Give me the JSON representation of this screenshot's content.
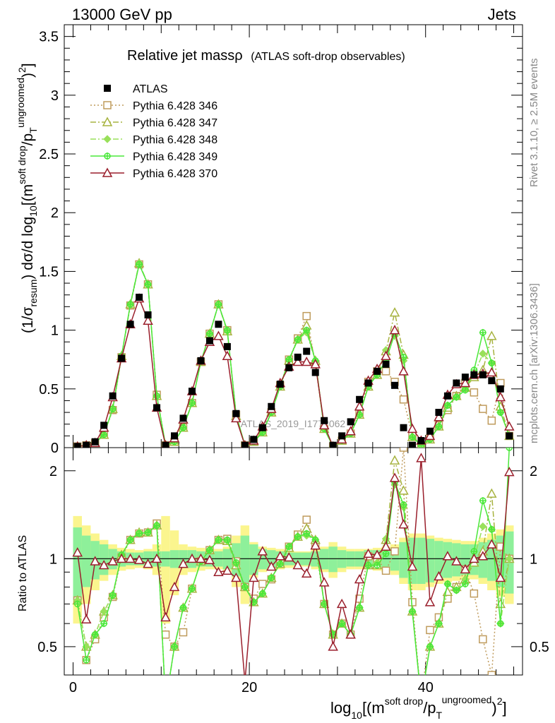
{
  "header": {
    "energy_label": "13000 GeV pp",
    "category_label": "Jets"
  },
  "side_text": {
    "rivet": "Rivet 3.1.10, ≥ 2.5M events",
    "site": "mcplots.cern.ch [arXiv:1306.3436]"
  },
  "chart_data": [
    {
      "type": "line",
      "panel": "main",
      "title": "Relative jet massρ",
      "subtitle": "(ATLAS soft-drop observables)",
      "ylabel": "(1/σresum) dσ/d log10[(m^soft drop/pT^ungroomed)^2]",
      "watermark": "ATLAS_2019_I1772062",
      "xlim": [
        -1,
        51
      ],
      "ylim": [
        0,
        3.6
      ],
      "y_ticks": [
        "0",
        "0.5",
        "1",
        "1.5",
        "2",
        "2.5",
        "3",
        "3.5"
      ],
      "grid": false,
      "legend_position": "top-left",
      "data": {
        "name": "ATLAS",
        "color": "#000000",
        "x": [
          0.5,
          1.5,
          2.5,
          3.5,
          4.5,
          5.5,
          6.5,
          7.5,
          8.5,
          9.5,
          10.5,
          11.5,
          12.5,
          13.5,
          14.5,
          15.5,
          16.5,
          17.5,
          18.5,
          19.5,
          20.5,
          21.5,
          22.5,
          23.5,
          24.5,
          25.5,
          26.5,
          27.5,
          28.5,
          29.5,
          30.5,
          31.5,
          32.5,
          33.5,
          34.5,
          35.5,
          36.5,
          37.5,
          38.5,
          39.5,
          40.5,
          41.5,
          42.5,
          43.5,
          44.5,
          45.5,
          46.5,
          47.5,
          48.5,
          49.5
        ],
        "y": [
          0.01,
          0.02,
          0.05,
          0.19,
          0.44,
          0.76,
          1.05,
          1.28,
          1.13,
          0.34,
          0.02,
          0.1,
          0.25,
          0.48,
          0.74,
          0.91,
          1.05,
          0.86,
          0.29,
          0.02,
          0.07,
          0.17,
          0.35,
          0.54,
          0.68,
          0.77,
          0.82,
          0.64,
          0.23,
          0.02,
          0.1,
          0.22,
          0.41,
          0.55,
          0.65,
          0.71,
          0.53,
          0.17,
          0.02,
          0.06,
          0.14,
          0.3,
          0.44,
          0.55,
          0.6,
          0.62,
          0.62,
          0.57,
          0.5,
          0.1
        ]
      },
      "series": [
        {
          "name": "Pythia 6.428 346",
          "color": "#bf9b5c",
          "marker": "square-open",
          "dash": "dotted",
          "y": [
            0.01,
            0.02,
            0.04,
            0.11,
            0.32,
            0.77,
            1.21,
            1.56,
            1.39,
            0.45,
            0.02,
            0.05,
            0.17,
            0.38,
            0.73,
            0.97,
            1.22,
            1.0,
            0.28,
            0.02,
            0.05,
            0.14,
            0.3,
            0.53,
            0.75,
            0.93,
            1.12,
            0.71,
            0.16,
            0.01,
            0.06,
            0.12,
            0.3,
            0.56,
            0.65,
            0.65,
            0.56,
            0.41,
            0.1,
            0.02,
            0.08,
            0.19,
            0.32,
            0.44,
            0.55,
            0.47,
            0.33,
            0.23,
            0.55,
            0.1
          ]
        },
        {
          "name": "Pythia 6.428 347",
          "color": "#a7b340",
          "marker": "triangle-open",
          "dash": "dashdot",
          "y": [
            0.01,
            0.02,
            0.04,
            0.11,
            0.33,
            0.78,
            1.22,
            1.57,
            1.39,
            0.44,
            0.02,
            0.05,
            0.17,
            0.38,
            0.73,
            0.97,
            1.22,
            0.99,
            0.27,
            0.02,
            0.05,
            0.13,
            0.3,
            0.52,
            0.74,
            0.92,
            1.04,
            0.74,
            0.16,
            0.01,
            0.06,
            0.12,
            0.28,
            0.52,
            0.62,
            0.82,
            1.15,
            0.79,
            0.09,
            0.02,
            0.07,
            0.18,
            0.34,
            0.44,
            0.51,
            0.6,
            0.66,
            0.95,
            0.35,
            0.1
          ]
        },
        {
          "name": "Pythia 6.428 348",
          "color": "#99e05a",
          "marker": "diamond",
          "dash": "dashdot",
          "y": [
            0.01,
            0.02,
            0.04,
            0.11,
            0.33,
            0.78,
            1.22,
            1.57,
            1.39,
            0.44,
            0.02,
            0.05,
            0.17,
            0.38,
            0.73,
            0.97,
            1.22,
            0.99,
            0.28,
            0.02,
            0.05,
            0.13,
            0.3,
            0.52,
            0.75,
            0.92,
            0.98,
            0.74,
            0.16,
            0.01,
            0.06,
            0.12,
            0.28,
            0.52,
            0.63,
            0.83,
            0.95,
            0.74,
            0.09,
            0.02,
            0.07,
            0.18,
            0.36,
            0.43,
            0.51,
            0.62,
            0.8,
            0.72,
            0.3,
            0.1
          ]
        },
        {
          "name": "Pythia 6.428 349",
          "color": "#4ae83a",
          "marker": "cross-circle",
          "dash": "solid",
          "y": [
            0.01,
            0.02,
            0.04,
            0.11,
            0.33,
            0.78,
            1.22,
            1.56,
            1.39,
            0.44,
            0.02,
            0.05,
            0.17,
            0.38,
            0.73,
            0.97,
            1.22,
            1.0,
            0.28,
            0.02,
            0.05,
            0.13,
            0.3,
            0.52,
            0.75,
            0.92,
            1.0,
            0.74,
            0.16,
            0.01,
            0.06,
            0.12,
            0.28,
            0.52,
            0.62,
            0.74,
            0.97,
            0.77,
            0.09,
            0.02,
            0.07,
            0.18,
            0.36,
            0.43,
            0.49,
            0.66,
            0.98,
            0.72,
            0.3,
            0.1
          ]
        },
        {
          "name": "Pythia 6.428 370",
          "color": "#9a1f2c",
          "marker": "triangle-open",
          "dash": "solid",
          "y": [
            0.01,
            0.02,
            0.04,
            0.17,
            0.43,
            0.76,
            1.05,
            1.27,
            1.08,
            0.34,
            0.02,
            0.08,
            0.24,
            0.48,
            0.74,
            0.9,
            0.95,
            0.78,
            0.25,
            0.02,
            0.06,
            0.18,
            0.33,
            0.55,
            0.69,
            0.73,
            0.73,
            0.71,
            0.19,
            0.01,
            0.07,
            0.14,
            0.35,
            0.57,
            0.67,
            0.78,
            1.0,
            0.65,
            0.16,
            0.06,
            0.1,
            0.26,
            0.45,
            0.54,
            0.55,
            0.62,
            0.63,
            0.64,
            0.43,
            0.18
          ]
        }
      ]
    },
    {
      "type": "line",
      "panel": "ratio",
      "ylabel": "Ratio to ATLAS",
      "xlabel": "log10[(m^soft drop/pT^ungroomed)^2]",
      "xlim": [
        -1,
        51
      ],
      "ylim": [
        0.4,
        2.4
      ],
      "y_scale": "log",
      "x_ticks": [
        "0",
        "20",
        "40"
      ],
      "y_ticks": [
        "0.5",
        "1",
        "2"
      ],
      "band_colors": {
        "inner": "#8ef09a",
        "outer": "#fbf58e"
      },
      "band_inner_half_width": [
        0.28,
        0.2,
        0.15,
        0.12,
        0.08,
        0.06,
        0.05,
        0.05,
        0.06,
        0.06,
        0.06,
        0.07,
        0.07,
        0.07,
        0.06,
        0.06,
        0.06,
        0.08,
        0.13,
        0.2,
        0.12,
        0.08,
        0.07,
        0.06,
        0.05,
        0.05,
        0.05,
        0.06,
        0.08,
        0.1,
        0.07,
        0.06,
        0.06,
        0.07,
        0.07,
        0.07,
        0.09,
        0.14,
        0.18,
        0.18,
        0.17,
        0.15,
        0.14,
        0.13,
        0.12,
        0.12,
        0.14,
        0.16,
        0.2,
        0.24
      ],
      "band_outer_half_width": [
        0.4,
        0.3,
        0.22,
        0.16,
        0.12,
        0.09,
        0.08,
        0.07,
        0.08,
        0.12,
        0.4,
        0.25,
        0.12,
        0.1,
        0.09,
        0.08,
        0.08,
        0.1,
        0.2,
        0.3,
        0.14,
        0.1,
        0.09,
        0.08,
        0.07,
        0.06,
        0.06,
        0.08,
        0.1,
        0.14,
        0.1,
        0.08,
        0.08,
        0.08,
        0.09,
        0.1,
        0.12,
        0.18,
        0.22,
        0.22,
        0.2,
        0.18,
        0.17,
        0.16,
        0.15,
        0.15,
        0.18,
        0.22,
        0.26,
        0.3
      ],
      "series": [
        {
          "name": "Pythia 6.428 346",
          "y": [
            0.72,
            0.45,
            0.53,
            0.63,
            0.74,
            1.01,
            1.16,
            1.22,
            1.23,
            1.32,
            0.55,
            0.5,
            0.56,
            0.79,
            0.98,
            1.07,
            1.16,
            1.17,
            0.98,
            0.8,
            0.73,
            0.82,
            0.85,
            0.98,
            1.1,
            1.21,
            1.36,
            1.11,
            0.7,
            0.55,
            0.6,
            0.55,
            0.73,
            1.02,
            1.0,
            0.91,
            1.06,
            2.4,
            0.71,
            0.33,
            0.57,
            0.63,
            0.73,
            0.8,
            0.92,
            0.76,
            0.53,
            0.4,
            1.1,
            1.0
          ]
        },
        {
          "name": "Pythia 6.428 347",
          "y": [
            0.72,
            0.5,
            0.55,
            0.66,
            0.75,
            1.03,
            1.16,
            1.23,
            1.23,
            1.3,
            0.3,
            0.5,
            0.68,
            0.79,
            0.98,
            1.07,
            1.16,
            1.15,
            0.95,
            0.8,
            0.71,
            0.76,
            0.86,
            0.96,
            1.09,
            1.19,
            1.27,
            1.16,
            0.7,
            0.55,
            0.6,
            0.55,
            0.68,
            0.95,
            0.95,
            1.16,
            2.17,
            1.71,
            0.66,
            0.33,
            0.5,
            0.6,
            0.77,
            0.8,
            0.85,
            0.97,
            1.06,
            1.67,
            0.7,
            1.0
          ]
        },
        {
          "name": "Pythia 6.428 348",
          "y": [
            0.72,
            0.5,
            0.55,
            0.66,
            0.75,
            1.03,
            1.16,
            1.23,
            1.23,
            1.3,
            0.3,
            0.5,
            0.68,
            0.79,
            0.98,
            1.07,
            1.16,
            1.15,
            0.96,
            0.8,
            0.71,
            0.76,
            0.86,
            0.96,
            1.1,
            1.19,
            1.2,
            1.16,
            0.7,
            0.55,
            0.6,
            0.55,
            0.68,
            0.95,
            0.97,
            1.17,
            1.79,
            1.5,
            0.66,
            0.33,
            0.5,
            0.6,
            0.82,
            0.78,
            0.85,
            1.0,
            1.29,
            1.26,
            0.6,
            1.0
          ]
        },
        {
          "name": "Pythia 6.428 349",
          "y": [
            0.7,
            0.45,
            0.55,
            0.6,
            0.75,
            1.03,
            1.16,
            1.22,
            1.23,
            1.3,
            0.3,
            0.5,
            0.68,
            0.79,
            0.98,
            1.07,
            1.16,
            1.16,
            0.97,
            0.8,
            0.71,
            0.76,
            0.86,
            0.96,
            1.1,
            1.19,
            1.22,
            1.16,
            0.7,
            0.55,
            0.6,
            0.55,
            0.68,
            0.95,
            0.95,
            1.04,
            1.83,
            1.53,
            0.66,
            0.33,
            0.5,
            0.6,
            0.82,
            0.78,
            0.82,
            1.06,
            1.58,
            1.26,
            0.6,
            2.4
          ]
        },
        {
          "name": "Pythia 6.428 370",
          "y": [
            1.05,
            0.62,
            0.98,
            0.95,
            0.98,
            1.0,
            1.0,
            0.99,
            0.96,
            1.0,
            0.63,
            0.8,
            0.96,
            1.0,
            1.0,
            0.99,
            0.9,
            0.91,
            0.86,
            0.38,
            0.86,
            1.06,
            0.94,
            1.02,
            1.01,
            0.95,
            0.89,
            1.11,
            0.83,
            0.5,
            0.7,
            0.55,
            0.85,
            1.04,
            1.03,
            1.1,
            1.89,
            1.31,
            0.94,
            2.21,
            0.71,
            0.87,
            1.02,
            0.98,
            0.92,
            1.0,
            1.02,
            1.12,
            0.86,
            1.98
          ]
        }
      ]
    }
  ]
}
